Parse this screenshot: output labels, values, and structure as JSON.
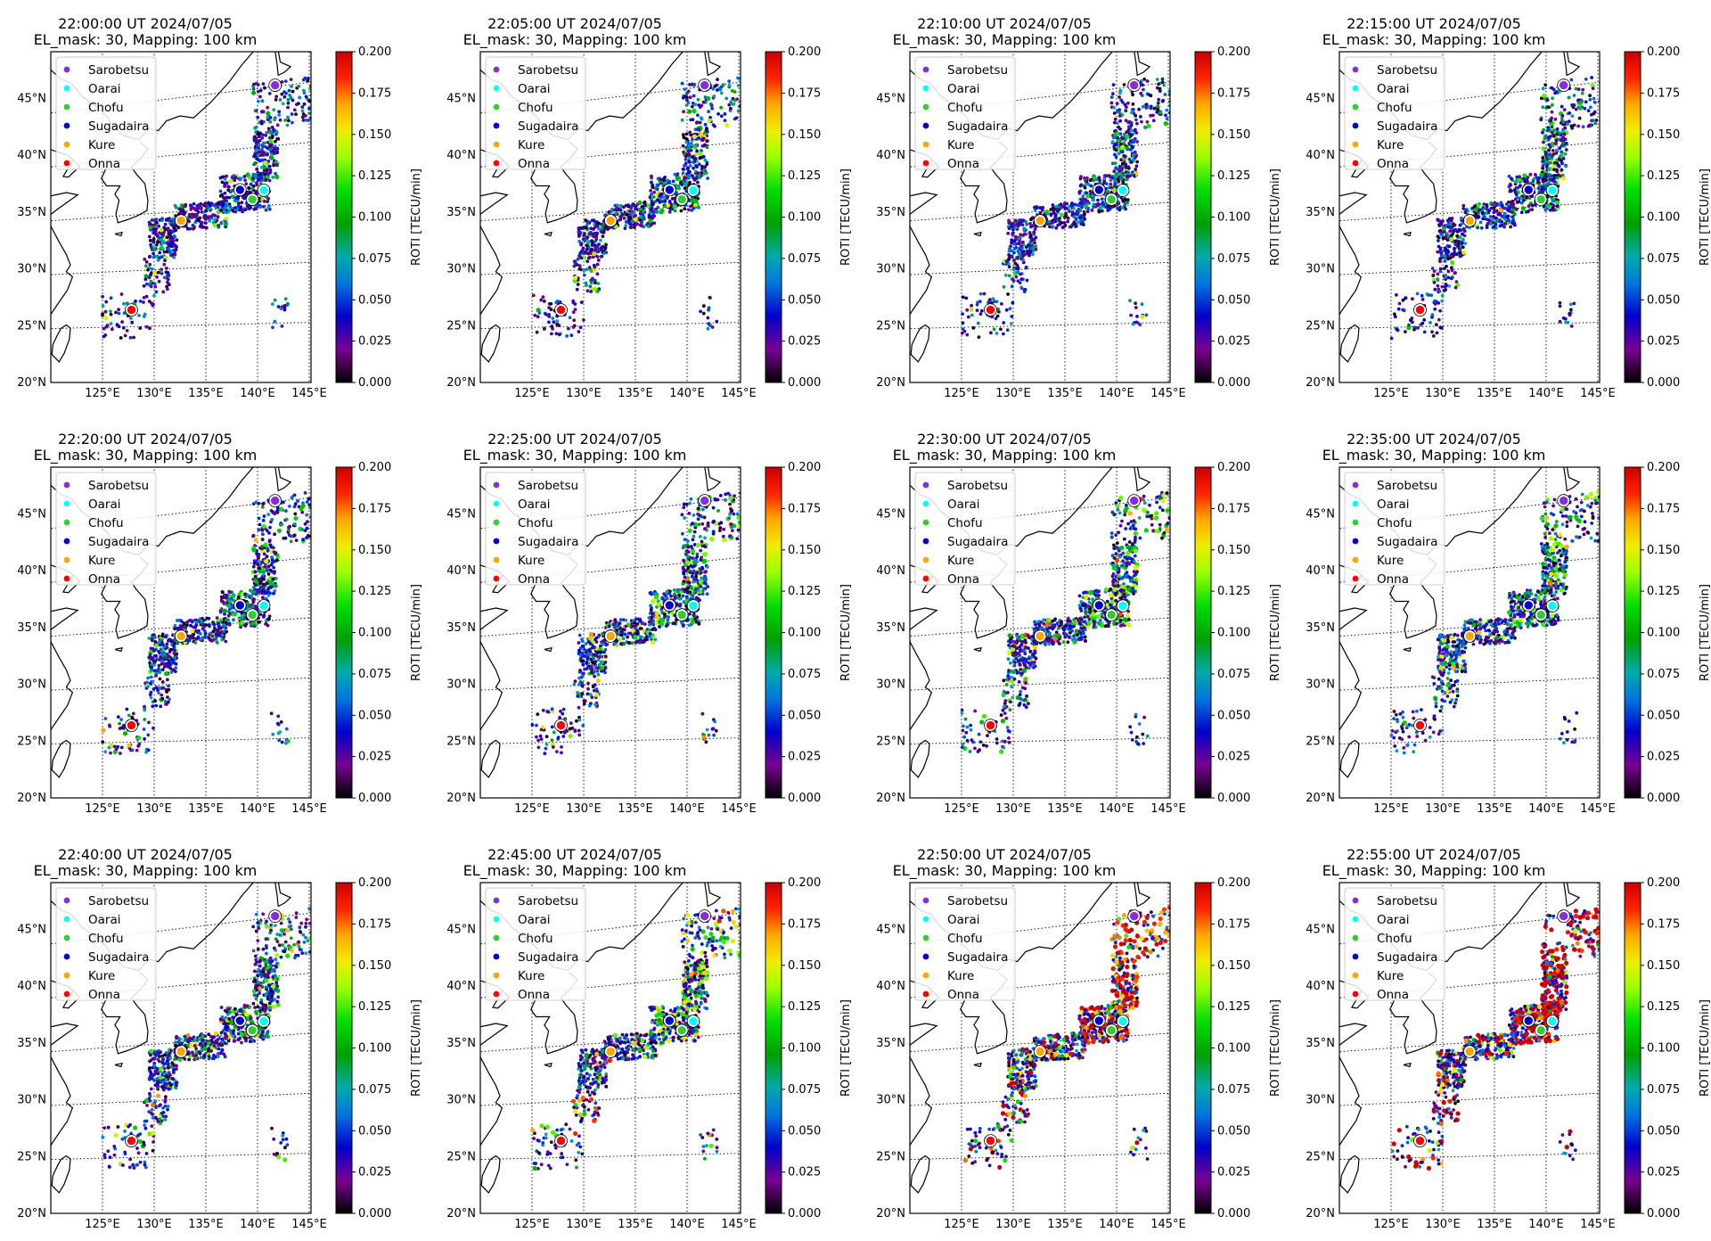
{
  "figure": {
    "colorbar": {
      "label": "ROTI [TECU/min]",
      "ticks": [
        "0.000",
        "0.025",
        "0.050",
        "0.075",
        "0.100",
        "0.125",
        "0.150",
        "0.175",
        "0.200"
      ],
      "vmin": 0.0,
      "vmax": 0.2,
      "colormap": "nipy_spectral"
    },
    "map_axes": {
      "lon_ticks": [
        "125°E",
        "130°E",
        "135°E",
        "140°E",
        "145°E"
      ],
      "lat_ticks": [
        "20°N",
        "25°N",
        "30°N",
        "35°N",
        "40°N",
        "45°N"
      ],
      "lon_range": [
        120,
        146
      ],
      "lat_range": [
        20,
        49
      ]
    },
    "legend": [
      {
        "name": "Sarobetsu",
        "color": "#8a2be2"
      },
      {
        "name": "Oarai",
        "color": "#00ffff"
      },
      {
        "name": "Chofu",
        "color": "#32cd32"
      },
      {
        "name": "Sugadaira",
        "color": "#0000cd"
      },
      {
        "name": "Kure",
        "color": "#ffa500"
      },
      {
        "name": "Onna",
        "color": "#ff0000"
      }
    ],
    "stations": [
      {
        "name": "Sarobetsu",
        "lon": 141.7,
        "lat": 45.1
      },
      {
        "name": "Oarai",
        "lon": 140.6,
        "lat": 36.3
      },
      {
        "name": "Chofu",
        "lon": 139.5,
        "lat": 35.6
      },
      {
        "name": "Sugadaira",
        "lon": 138.3,
        "lat": 36.5
      },
      {
        "name": "Kure",
        "lon": 132.6,
        "lat": 34.2
      },
      {
        "name": "Onna",
        "lon": 127.8,
        "lat": 26.5
      }
    ],
    "panels": [
      {
        "line1": "22:00:00 UT 2024/07/05",
        "line2": "EL_mask: 30, Mapping: 100 km",
        "activity": 0.05
      },
      {
        "line1": "22:05:00 UT 2024/07/05",
        "line2": "EL_mask: 30, Mapping: 100 km",
        "activity": 0.06
      },
      {
        "line1": "22:10:00 UT 2024/07/05",
        "line2": "EL_mask: 30, Mapping: 100 km",
        "activity": 0.06
      },
      {
        "line1": "22:15:00 UT 2024/07/05",
        "line2": "EL_mask: 30, Mapping: 100 km",
        "activity": 0.07
      },
      {
        "line1": "22:20:00 UT 2024/07/05",
        "line2": "EL_mask: 30, Mapping: 100 km",
        "activity": 0.07
      },
      {
        "line1": "22:25:00 UT 2024/07/05",
        "line2": "EL_mask: 30, Mapping: 100 km",
        "activity": 0.08
      },
      {
        "line1": "22:30:00 UT 2024/07/05",
        "line2": "EL_mask: 30, Mapping: 100 km",
        "activity": 0.09
      },
      {
        "line1": "22:35:00 UT 2024/07/05",
        "line2": "EL_mask: 30, Mapping: 100 km",
        "activity": 0.08
      },
      {
        "line1": "22:40:00 UT 2024/07/05",
        "line2": "EL_mask: 30, Mapping: 100 km",
        "activity": 0.08
      },
      {
        "line1": "22:45:00 UT 2024/07/05",
        "line2": "EL_mask: 30, Mapping: 100 km",
        "activity": 0.1
      },
      {
        "line1": "22:50:00 UT 2024/07/05",
        "line2": "EL_mask: 30, Mapping: 100 km",
        "activity": 0.16
      },
      {
        "line1": "22:55:00 UT 2024/07/05",
        "line2": "EL_mask: 30, Mapping: 100 km",
        "activity": 0.18
      }
    ]
  }
}
